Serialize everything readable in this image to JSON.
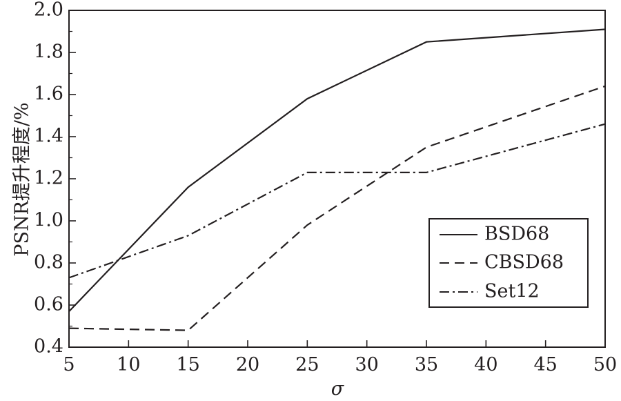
{
  "chart_data": {
    "type": "line",
    "xlabel": "σ",
    "ylabel": "PSNR提升程度/%",
    "x": [
      5,
      15,
      25,
      35,
      50
    ],
    "xlim": [
      5,
      50
    ],
    "ylim": [
      0.4,
      2.0
    ],
    "xticks": [
      "5",
      "10",
      "15",
      "20",
      "25",
      "30",
      "35",
      "40",
      "45",
      "50"
    ],
    "yticks": [
      "0.4",
      "0.6",
      "0.8",
      "1.0",
      "1.2",
      "1.4",
      "1.6",
      "1.8",
      "2.0"
    ],
    "grid": false,
    "legend_position": "bottom-right",
    "series": [
      {
        "name": "BSD68",
        "style": "solid",
        "values": [
          0.57,
          1.16,
          1.58,
          1.85,
          1.91
        ]
      },
      {
        "name": "CBSD68",
        "style": "dashed",
        "values": [
          0.49,
          0.48,
          0.98,
          1.35,
          1.64
        ]
      },
      {
        "name": "Set12",
        "style": "dashdot",
        "values": [
          0.73,
          0.93,
          1.23,
          1.23,
          1.46
        ]
      }
    ],
    "line_color": "#231f20"
  }
}
